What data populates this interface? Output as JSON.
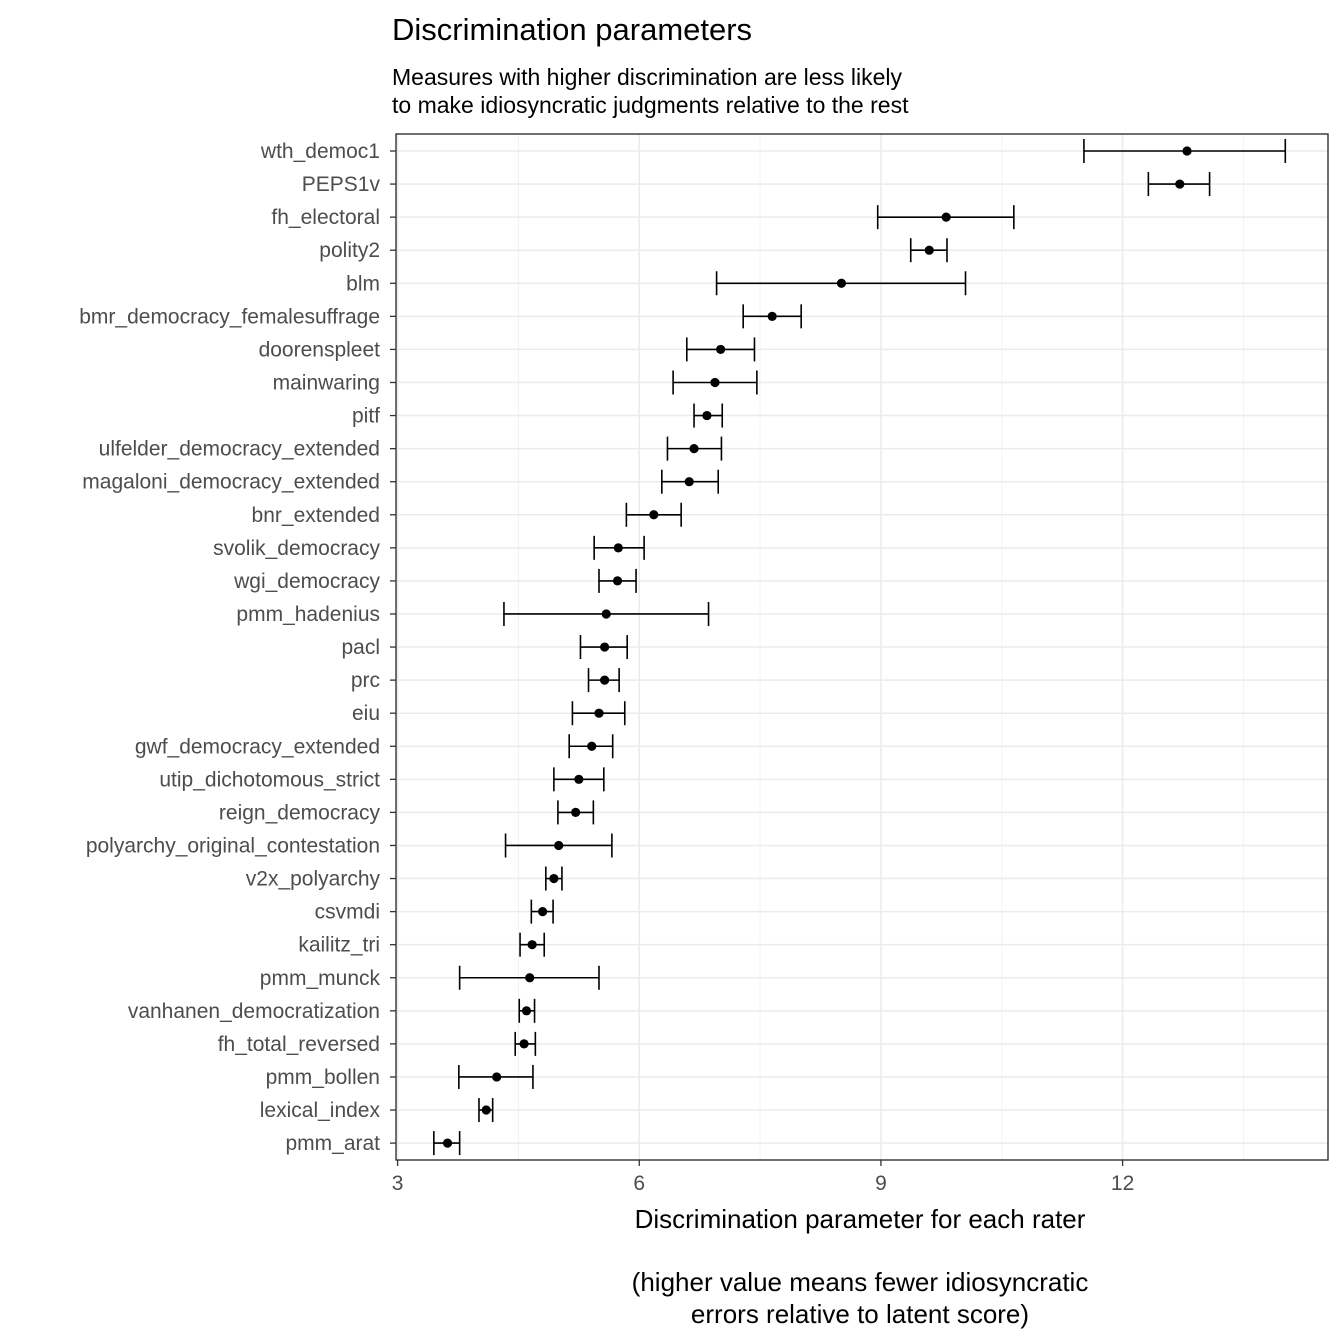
{
  "chart_data": {
    "type": "scatter",
    "title": "Discrimination parameters",
    "subtitle": [
      "Measures with higher discrimination are less likely",
      "to make idiosyncratic judgments relative to the rest"
    ],
    "xlabel": [
      "Discrimination parameter for each rater",
      "",
      "(higher value means fewer idiosyncratic",
      "errors relative to latent score)"
    ],
    "ylabel": "",
    "xlim": [
      2.98,
      14.55
    ],
    "x_ticks": [
      3,
      6,
      9,
      12
    ],
    "grid": true,
    "colors": {
      "points": "#000000",
      "grid_major": "#ebebeb",
      "grid_minor": "#f2f2f2",
      "panel_border": "#333333",
      "tick_text": "#4d4d4d"
    },
    "raters": [
      {
        "name": "wth_democ1",
        "estimate": 12.8,
        "low": 11.52,
        "high": 14.02
      },
      {
        "name": "PEPS1v",
        "estimate": 12.71,
        "low": 12.32,
        "high": 13.08
      },
      {
        "name": "fh_electoral",
        "estimate": 9.81,
        "low": 8.96,
        "high": 10.65
      },
      {
        "name": "polity2",
        "estimate": 9.6,
        "low": 9.37,
        "high": 9.82
      },
      {
        "name": "blm",
        "estimate": 8.51,
        "low": 6.96,
        "high": 10.05
      },
      {
        "name": "bmr_democracy_femalesuffrage",
        "estimate": 7.65,
        "low": 7.29,
        "high": 8.01
      },
      {
        "name": "doorenspleet",
        "estimate": 7.01,
        "low": 6.59,
        "high": 7.43
      },
      {
        "name": "mainwaring",
        "estimate": 6.94,
        "low": 6.42,
        "high": 7.46
      },
      {
        "name": "pitf",
        "estimate": 6.84,
        "low": 6.68,
        "high": 7.03
      },
      {
        "name": "ulfelder_democracy_extended",
        "estimate": 6.68,
        "low": 6.35,
        "high": 7.02
      },
      {
        "name": "magaloni_democracy_extended",
        "estimate": 6.62,
        "low": 6.28,
        "high": 6.98
      },
      {
        "name": "bnr_extended",
        "estimate": 6.18,
        "low": 5.84,
        "high": 6.52
      },
      {
        "name": "svolik_democracy",
        "estimate": 5.74,
        "low": 5.44,
        "high": 6.06
      },
      {
        "name": "wgi_democracy",
        "estimate": 5.73,
        "low": 5.5,
        "high": 5.96
      },
      {
        "name": "pmm_hadenius",
        "estimate": 5.59,
        "low": 4.32,
        "high": 6.86
      },
      {
        "name": "pacl",
        "estimate": 5.57,
        "low": 5.27,
        "high": 5.85
      },
      {
        "name": "prc",
        "estimate": 5.57,
        "low": 5.37,
        "high": 5.75
      },
      {
        "name": "eiu",
        "estimate": 5.5,
        "low": 5.17,
        "high": 5.82
      },
      {
        "name": "gwf_democracy_extended",
        "estimate": 5.41,
        "low": 5.13,
        "high": 5.67
      },
      {
        "name": "utip_dichotomous_strict",
        "estimate": 5.25,
        "low": 4.94,
        "high": 5.56
      },
      {
        "name": "reign_democracy",
        "estimate": 5.21,
        "low": 4.99,
        "high": 5.43
      },
      {
        "name": "polyarchy_original_contestation",
        "estimate": 5.0,
        "low": 4.34,
        "high": 5.66
      },
      {
        "name": "v2x_polyarchy",
        "estimate": 4.94,
        "low": 4.84,
        "high": 5.04
      },
      {
        "name": "csvmdi",
        "estimate": 4.8,
        "low": 4.66,
        "high": 4.93
      },
      {
        "name": "kailitz_tri",
        "estimate": 4.67,
        "low": 4.52,
        "high": 4.82
      },
      {
        "name": "pmm_munck",
        "estimate": 4.64,
        "low": 3.77,
        "high": 5.5
      },
      {
        "name": "vanhanen_democratization",
        "estimate": 4.6,
        "low": 4.51,
        "high": 4.7
      },
      {
        "name": "fh_total_reversed",
        "estimate": 4.57,
        "low": 4.46,
        "high": 4.71
      },
      {
        "name": "pmm_bollen",
        "estimate": 4.23,
        "low": 3.76,
        "high": 4.68
      },
      {
        "name": "lexical_index",
        "estimate": 4.1,
        "low": 4.01,
        "high": 4.18
      },
      {
        "name": "pmm_arat",
        "estimate": 3.62,
        "low": 3.45,
        "high": 3.77
      }
    ]
  }
}
